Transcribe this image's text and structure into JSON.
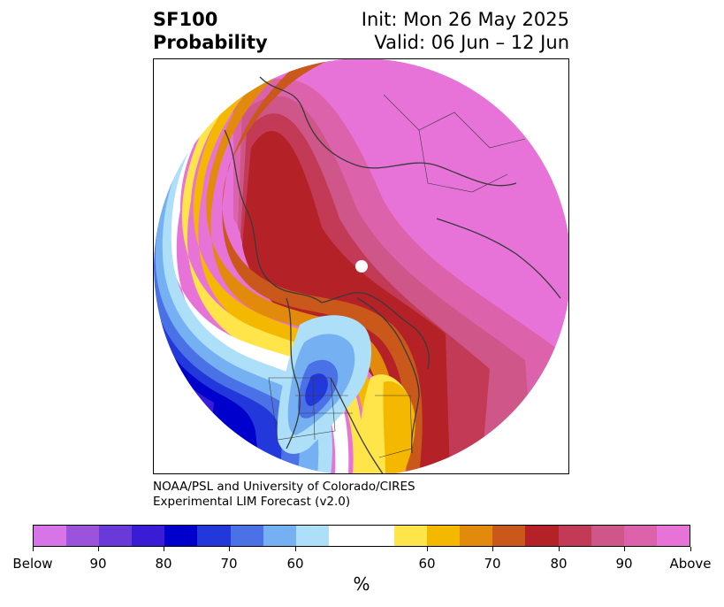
{
  "header": {
    "title_line1": "SF100",
    "title_line2": "Probability",
    "init_text": "Init: Mon 26 May 2025",
    "valid_text": "Valid: 06 Jun – 12 Jun"
  },
  "credit": {
    "line1": "NOAA/PSL and University of Colorado/CIRES",
    "line2": "Experimental LIM Forecast (v2.0)"
  },
  "colorbar": {
    "unit": "%",
    "colors": [
      "#d774e8",
      "#9b53dc",
      "#6a3ad8",
      "#3b1cd6",
      "#0000cd",
      "#2338da",
      "#4a72e6",
      "#75b1f2",
      "#addff9",
      "#ffffff",
      "#ffe44a",
      "#f5b800",
      "#e18a0c",
      "#c9581a",
      "#b42126",
      "#c23a55",
      "#cf5688",
      "#dc62ac",
      "#e773d9"
    ],
    "tick_labels": [
      "Below",
      "90",
      "80",
      "70",
      "60",
      "60",
      "70",
      "80",
      "90",
      "Above"
    ]
  },
  "map_colors": {
    "below_strong": "#9b53dc",
    "below_mid": "#0000cd",
    "below_light": "#addff9",
    "above_yellow": "#ffe44a",
    "above_orange": "#f5b800",
    "above_red": "#b42126",
    "above_magenta": "#e773d9",
    "coast": "#3a3a3a"
  }
}
